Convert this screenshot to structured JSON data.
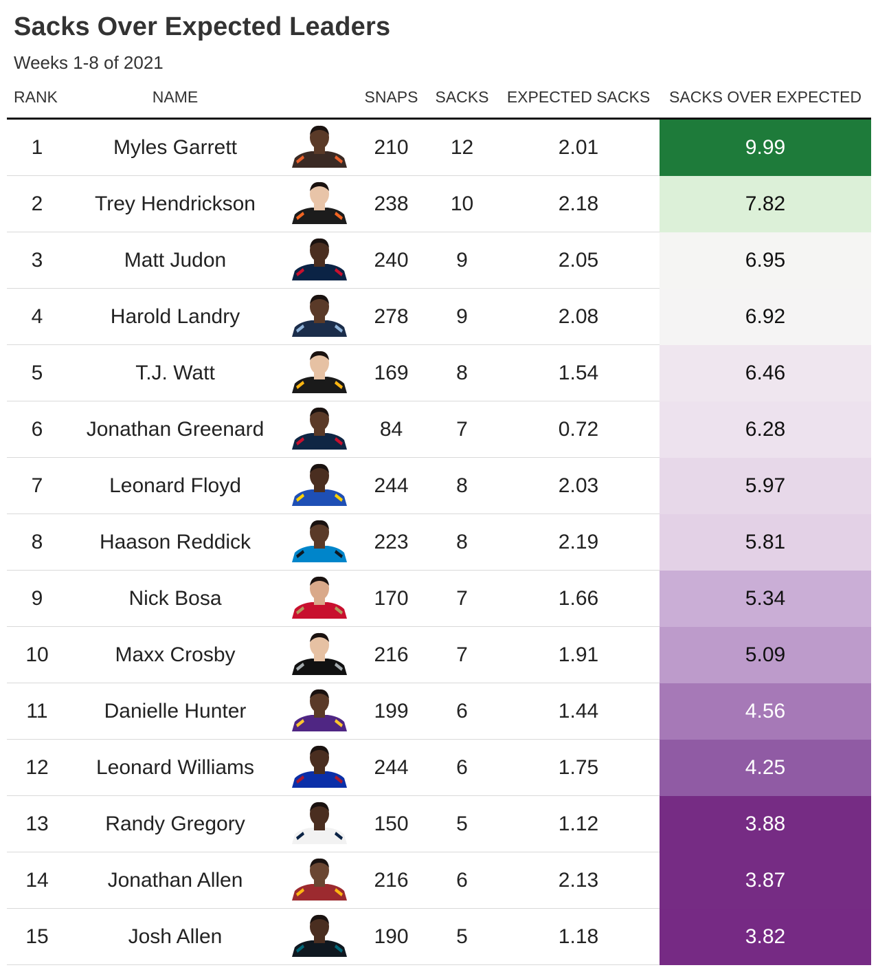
{
  "chart_data": {
    "type": "table",
    "title": "Sacks Over Expected Leaders",
    "subtitle": "Weeks 1-8 of 2021",
    "columns": [
      "RANK",
      "NAME",
      "",
      "SNAPS",
      "SACKS",
      "EXPECTED SACKS",
      "SACKS OVER EXPECTED"
    ],
    "rows": [
      {
        "rank": "1",
        "name": "Myles Garrett",
        "snaps": "210",
        "sacks": "12",
        "expected": "2.01",
        "soe": "9.99",
        "soe_bg": "#1e7b3a",
        "soe_fg": "#ffffff",
        "skin": "#5a3a28",
        "jersey": "#3a2a24",
        "trim": "#e8602c"
      },
      {
        "rank": "2",
        "name": "Trey Hendrickson",
        "snaps": "238",
        "sacks": "10",
        "expected": "2.18",
        "soe": "7.82",
        "soe_bg": "#dcf0d8",
        "soe_fg": "#111111",
        "skin": "#e8c4a8",
        "jersey": "#1c1c1c",
        "trim": "#f26522"
      },
      {
        "rank": "3",
        "name": "Matt Judon",
        "snaps": "240",
        "sacks": "9",
        "expected": "2.05",
        "soe": "6.95",
        "soe_bg": "#f5f5f3",
        "soe_fg": "#111111",
        "skin": "#4a2e20",
        "jersey": "#0b2345",
        "trim": "#c8102e"
      },
      {
        "rank": "4",
        "name": "Harold Landry",
        "snaps": "278",
        "sacks": "9",
        "expected": "2.08",
        "soe": "6.92",
        "soe_bg": "#f5f4f4",
        "soe_fg": "#111111",
        "skin": "#5a3a28",
        "jersey": "#1b2d4a",
        "trim": "#8fb3d9"
      },
      {
        "rank": "5",
        "name": "T.J. Watt",
        "snaps": "169",
        "sacks": "8",
        "expected": "1.54",
        "soe": "6.46",
        "soe_bg": "#efe6ef",
        "soe_fg": "#111111",
        "skin": "#e6c1a3",
        "jersey": "#1a1a1a",
        "trim": "#ffb612"
      },
      {
        "rank": "6",
        "name": "Jonathan Greenard",
        "snaps": "84",
        "sacks": "7",
        "expected": "0.72",
        "soe": "6.28",
        "soe_bg": "#ede2ee",
        "soe_fg": "#111111",
        "skin": "#5a3a28",
        "jersey": "#0f2644",
        "trim": "#c8102e"
      },
      {
        "rank": "7",
        "name": "Leonard Floyd",
        "snaps": "244",
        "sacks": "8",
        "expected": "2.03",
        "soe": "5.97",
        "soe_bg": "#e7d8e9",
        "soe_fg": "#111111",
        "skin": "#4a2e20",
        "jersey": "#1e4fb5",
        "trim": "#ffd100"
      },
      {
        "rank": "8",
        "name": "Haason Reddick",
        "snaps": "223",
        "sacks": "8",
        "expected": "2.19",
        "soe": "5.81",
        "soe_bg": "#e3d1e6",
        "soe_fg": "#111111",
        "skin": "#5a3a28",
        "jersey": "#0085ca",
        "trim": "#101820"
      },
      {
        "rank": "9",
        "name": "Nick Bosa",
        "snaps": "170",
        "sacks": "7",
        "expected": "1.66",
        "soe": "5.34",
        "soe_bg": "#caaed6",
        "soe_fg": "#111111",
        "skin": "#d9a98a",
        "jersey": "#c8102e",
        "trim": "#b3995d"
      },
      {
        "rank": "10",
        "name": "Maxx Crosby",
        "snaps": "216",
        "sacks": "7",
        "expected": "1.91",
        "soe": "5.09",
        "soe_bg": "#bd9bcb",
        "soe_fg": "#111111",
        "skin": "#e6c1a3",
        "jersey": "#111111",
        "trim": "#a5acaf"
      },
      {
        "rank": "11",
        "name": "Danielle Hunter",
        "snaps": "199",
        "sacks": "6",
        "expected": "1.44",
        "soe": "4.56",
        "soe_bg": "#a679b7",
        "soe_fg": "#ffffff",
        "skin": "#5a3a28",
        "jersey": "#4f2683",
        "trim": "#ffc62f"
      },
      {
        "rank": "12",
        "name": "Leonard Williams",
        "snaps": "244",
        "sacks": "6",
        "expected": "1.75",
        "soe": "4.25",
        "soe_bg": "#905ba4",
        "soe_fg": "#ffffff",
        "skin": "#4a2e20",
        "jersey": "#0b2fa8",
        "trim": "#a71930"
      },
      {
        "rank": "13",
        "name": "Randy Gregory",
        "snaps": "150",
        "sacks": "5",
        "expected": "1.12",
        "soe": "3.88",
        "soe_bg": "#762c84",
        "soe_fg": "#ffffff",
        "skin": "#4a2e20",
        "jersey": "#f2f2f2",
        "trim": "#0b2345"
      },
      {
        "rank": "14",
        "name": "Jonathan Allen",
        "snaps": "216",
        "sacks": "6",
        "expected": "2.13",
        "soe": "3.87",
        "soe_bg": "#762c84",
        "soe_fg": "#ffffff",
        "skin": "#6a4632",
        "jersey": "#9c2a2f",
        "trim": "#ffb612"
      },
      {
        "rank": "15",
        "name": "Josh Allen",
        "snaps": "190",
        "sacks": "5",
        "expected": "1.18",
        "soe": "3.82",
        "soe_bg": "#762a84",
        "soe_fg": "#ffffff",
        "skin": "#4a2e20",
        "jersey": "#101820",
        "trim": "#006778"
      }
    ]
  }
}
